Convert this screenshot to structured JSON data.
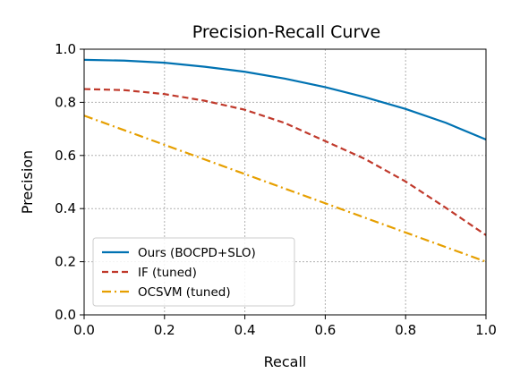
{
  "chart_data": {
    "type": "line",
    "title": "Precision-Recall Curve",
    "xlabel": "Recall",
    "ylabel": "Precision",
    "xlim": [
      0.0,
      1.0
    ],
    "ylim": [
      0.0,
      1.0
    ],
    "xticks": [
      "0.0",
      "0.2",
      "0.4",
      "0.6",
      "0.8",
      "1.0"
    ],
    "yticks": [
      "0.0",
      "0.2",
      "0.4",
      "0.6",
      "0.8",
      "1.0"
    ],
    "grid": true,
    "legend_position": "lower-left",
    "series": [
      {
        "name": "Ours (BOCPD+SLO)",
        "color": "#0072b2",
        "style": "solid",
        "x": [
          0.0,
          0.1,
          0.2,
          0.3,
          0.4,
          0.5,
          0.6,
          0.7,
          0.8,
          0.9,
          1.0
        ],
        "y": [
          0.96,
          0.957,
          0.949,
          0.934,
          0.915,
          0.889,
          0.857,
          0.819,
          0.775,
          0.723,
          0.66
        ]
      },
      {
        "name": "IF (tuned)",
        "color": "#c0392b",
        "style": "dashed",
        "x": [
          0.0,
          0.1,
          0.2,
          0.3,
          0.4,
          0.5,
          0.6,
          0.7,
          0.8,
          0.9,
          1.0
        ],
        "y": [
          0.85,
          0.846,
          0.831,
          0.806,
          0.772,
          0.722,
          0.654,
          0.586,
          0.502,
          0.403,
          0.3
        ]
      },
      {
        "name": "OCSVM (tuned)",
        "color": "#e69f00",
        "style": "dashdot",
        "x": [
          0.0,
          0.1,
          0.2,
          0.3,
          0.4,
          0.5,
          0.6,
          0.7,
          0.8,
          0.9,
          1.0
        ],
        "y": [
          0.75,
          0.695,
          0.64,
          0.585,
          0.53,
          0.475,
          0.42,
          0.365,
          0.31,
          0.255,
          0.2
        ]
      }
    ]
  }
}
